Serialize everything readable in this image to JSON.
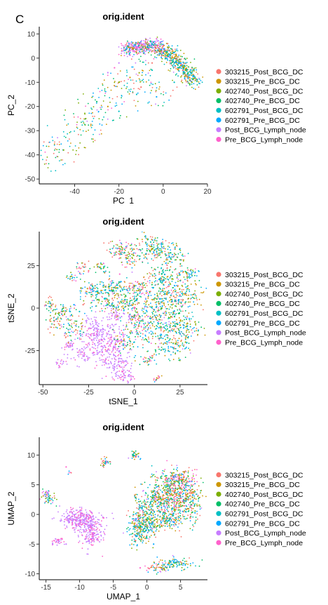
{
  "panel_label": "C",
  "legend_labels": [
    "303215_Post_BCG_DC",
    "303215_Pre_BCG_DC",
    "402740_Post_BCG_DC",
    "402740_Pre_BCG_DC",
    "602791_Post_BCG_DC",
    "602791_Pre_BCG_DC",
    "Post_BCG_Lymph_node",
    "Pre_BCG_Lymph_node"
  ],
  "colors": {
    "303215_Post_BCG_DC": "#F8766D",
    "303215_Pre_BCG_DC": "#CD9600",
    "402740_Post_BCG_DC": "#7CAE00",
    "402740_Pre_BCG_DC": "#00BE67",
    "602791_Post_BCG_DC": "#00BFC4",
    "602791_Pre_BCG_DC": "#00A9FF",
    "Post_BCG_Lymph_node": "#C77CFF",
    "Pre_BCG_Lymph_node": "#FF61CC"
  },
  "chart_data": [
    {
      "type": "scatter",
      "title": "orig.ident",
      "xlabel": "PC_1",
      "ylabel": "PC_2",
      "xlim": [
        -56,
        20
      ],
      "ylim": [
        -52,
        13
      ],
      "xticks": [
        -40,
        -20,
        0,
        20
      ],
      "yticks": [
        10,
        0,
        -10,
        -20,
        -30,
        -40,
        -50
      ],
      "grid": false,
      "legend": "right",
      "series": [
        {
          "name": "303215_Post_BCG_DC",
          "x": [
            0,
            3,
            6,
            9,
            11,
            2,
            -5,
            -10
          ],
          "y": [
            5,
            3,
            0,
            -5,
            -8,
            6,
            -2,
            -12
          ]
        },
        {
          "name": "303215_Pre_BCG_DC",
          "x": [
            4,
            8,
            12,
            -15,
            -25
          ],
          "y": [
            2,
            -3,
            -9,
            -8,
            -20
          ]
        },
        {
          "name": "402740_Post_BCG_DC",
          "x": [
            5,
            10,
            13,
            -20,
            -35,
            -45
          ],
          "y": [
            0,
            -5,
            -10,
            -10,
            -25,
            -38
          ]
        },
        {
          "name": "402740_Pre_BCG_DC",
          "x": [
            2,
            7,
            12,
            -30
          ],
          "y": [
            1,
            -4,
            -11,
            -18
          ]
        },
        {
          "name": "602791_Post_BCG_DC",
          "x": [
            -5,
            5,
            -12,
            -20
          ],
          "y": [
            -5,
            -10,
            -15,
            -22
          ]
        },
        {
          "name": "602791_Pre_BCG_DC",
          "x": [
            0,
            8,
            12,
            -3
          ],
          "y": [
            2,
            -2,
            -7,
            -16
          ]
        },
        {
          "name": "Post_BCG_Lymph_node",
          "x": [
            -15,
            -10,
            -5,
            0,
            -20,
            -25
          ],
          "y": [
            3,
            6,
            5,
            4,
            -2,
            -6
          ]
        },
        {
          "name": "Pre_BCG_Lymph_node",
          "x": [
            -12,
            -8,
            -3,
            -22
          ],
          "y": [
            4,
            7,
            8,
            -4
          ]
        }
      ]
    },
    {
      "type": "scatter",
      "title": "orig.ident",
      "xlabel": "tSNE_1",
      "ylabel": "tSNE_2",
      "xlim": [
        -52,
        40
      ],
      "ylim": [
        -45,
        45
      ],
      "xticks": [
        -50,
        -25,
        0,
        25
      ],
      "yticks": [
        25,
        0,
        -25
      ],
      "grid": false,
      "legend": "right",
      "series": [
        {
          "name": "303215_Post_BCG_DC",
          "x": [
            -8,
            -15,
            3,
            -3,
            -28,
            -25
          ],
          "y": [
            35,
            5,
            10,
            28,
            2,
            22
          ]
        },
        {
          "name": "303215_Pre_BCG_DC",
          "x": [
            20,
            25
          ],
          "y": [
            5,
            -10
          ]
        },
        {
          "name": "402740_Post_BCG_DC",
          "x": [
            10,
            28,
            15,
            20
          ],
          "y": [
            35,
            -20,
            0,
            -5
          ]
        },
        {
          "name": "402740_Pre_BCG_DC",
          "x": [
            -20,
            -12,
            15,
            22
          ],
          "y": [
            5,
            10,
            20,
            -5
          ]
        },
        {
          "name": "602791_Post_BCG_DC",
          "x": [
            -30,
            -20,
            0,
            25
          ],
          "y": [
            -2,
            10,
            -20,
            -15
          ]
        },
        {
          "name": "602791_Pre_BCG_DC",
          "x": [
            -5,
            8,
            30,
            -33
          ],
          "y": [
            5,
            -20,
            20,
            2
          ]
        },
        {
          "name": "Post_BCG_Lymph_node",
          "x": [
            -15,
            -10,
            -38,
            -7
          ],
          "y": [
            -25,
            -40,
            -15,
            -5
          ]
        },
        {
          "name": "Pre_BCG_Lymph_node",
          "x": [
            -8,
            0,
            5
          ],
          "y": [
            20,
            0,
            -30
          ]
        }
      ]
    },
    {
      "type": "scatter",
      "title": "orig.ident",
      "xlabel": "UMAP_1",
      "ylabel": "UMAP_2",
      "xlim": [
        -16,
        9
      ],
      "ylim": [
        -11,
        13
      ],
      "xticks": [
        -15,
        -10,
        -5,
        0,
        5
      ],
      "yticks": [
        10,
        5,
        0,
        -5,
        -10
      ],
      "grid": false,
      "legend": "right",
      "series": [
        {
          "name": "303215_Post_BCG_DC",
          "x": [
            4,
            2,
            0,
            5
          ],
          "y": [
            5,
            3,
            -2,
            -8
          ]
        },
        {
          "name": "303215_Pre_BCG_DC",
          "x": [
            5,
            1
          ],
          "y": [
            2,
            -3
          ]
        },
        {
          "name": "402740_Post_BCG_DC",
          "x": [
            6,
            3,
            0
          ],
          "y": [
            3,
            5,
            -1
          ]
        },
        {
          "name": "402740_Pre_BCG_DC",
          "x": [
            2,
            -1,
            -2
          ],
          "y": [
            2,
            -2,
            10
          ]
        },
        {
          "name": "602791_Post_BCG_DC",
          "x": [
            4,
            0,
            -2
          ],
          "y": [
            -8,
            -4,
            0
          ]
        },
        {
          "name": "602791_Pre_BCG_DC",
          "x": [
            6,
            1,
            4
          ],
          "y": [
            4,
            -5,
            -8
          ]
        },
        {
          "name": "Post_BCG_Lymph_node",
          "x": [
            -9,
            -10,
            -8,
            -12,
            -15,
            -14
          ],
          "y": [
            0,
            -2,
            -4,
            -5,
            3,
            -5
          ]
        },
        {
          "name": "Pre_BCG_Lymph_node",
          "x": [
            4,
            -1,
            -12
          ],
          "y": [
            5,
            -9,
            8
          ]
        }
      ]
    }
  ]
}
